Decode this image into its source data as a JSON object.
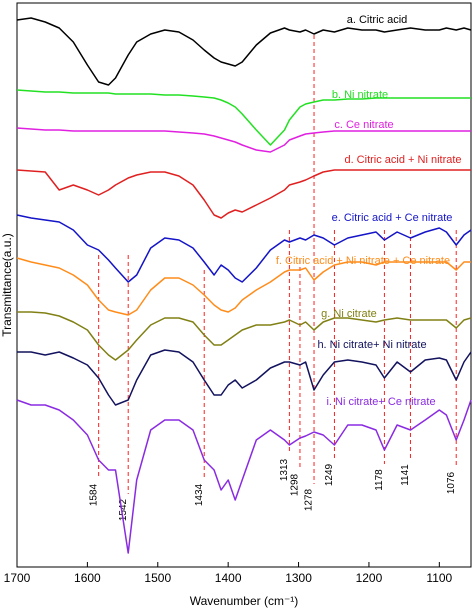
{
  "chart_data": {
    "type": "line",
    "xlabel": "Wavenumber (cm⁻¹)",
    "ylabel": "Transmittance(a.u.)",
    "xlim": [
      1700,
      1055
    ],
    "ylim": [
      0,
      564
    ],
    "xticks": [
      1700,
      1600,
      1500,
      1400,
      1300,
      1200,
      1100
    ],
    "peaks": [
      1584,
      1542,
      1434,
      1313,
      1298,
      1278,
      1249,
      1178,
      1141,
      1076
    ],
    "x": [
      1700,
      1680,
      1660,
      1640,
      1620,
      1600,
      1584,
      1570,
      1560,
      1542,
      1530,
      1510,
      1490,
      1470,
      1450,
      1434,
      1420,
      1410,
      1400,
      1390,
      1380,
      1360,
      1340,
      1320,
      1313,
      1298,
      1290,
      1278,
      1265,
      1249,
      1230,
      1210,
      1190,
      1178,
      1160,
      1141,
      1120,
      1100,
      1090,
      1076,
      1065,
      1055
    ],
    "series": [
      {
        "name": "a. Citric acid",
        "color": "#000000",
        "values": [
          547,
          549,
          545,
          539,
          525,
          502,
          485,
          482,
          489,
          512,
          525,
          533,
          537,
          535,
          527,
          517,
          509,
          505,
          503,
          501,
          505,
          522,
          534,
          539,
          537,
          535,
          537,
          533,
          537,
          535,
          539,
          537,
          537,
          535,
          537,
          539,
          537,
          537,
          539,
          537,
          539,
          537
        ]
      },
      {
        "name": "b. Ni nitrate",
        "color": "#22e022",
        "values": [
          477,
          476,
          475,
          475,
          474,
          474,
          474,
          474,
          473,
          473,
          473,
          473,
          472,
          472,
          471,
          470,
          469,
          467,
          464,
          460,
          453,
          437,
          422,
          437,
          447,
          460,
          463,
          465,
          467,
          467,
          468,
          468,
          469,
          469,
          469,
          469,
          469,
          469,
          469,
          469,
          469,
          469
        ]
      },
      {
        "name": "c. Ce nitrate",
        "color": "#e020e0",
        "values": [
          439,
          438,
          437,
          437,
          436,
          436,
          436,
          436,
          436,
          436,
          436,
          436,
          436,
          435,
          434,
          433,
          431,
          429,
          427,
          425,
          422,
          417,
          415,
          422,
          427,
          431,
          433,
          434,
          435,
          436,
          436,
          436,
          436,
          436,
          436,
          436,
          436,
          436,
          436,
          436,
          436,
          436
        ]
      },
      {
        "name": "d. Citric acid + Ni nitrate",
        "color": "#e02020",
        "values": [
          397,
          396,
          395,
          377,
          382,
          377,
          372,
          377,
          382,
          389,
          392,
          395,
          395,
          391,
          382,
          367,
          352,
          349,
          354,
          357,
          355,
          362,
          369,
          377,
          382,
          385,
          387,
          391,
          395,
          397,
          397,
          397,
          397,
          397,
          397,
          397,
          397,
          397,
          397,
          397,
          397,
          397
        ]
      },
      {
        "name": "e. Citric acid + Ce nitrate",
        "color": "#1414c8",
        "values": [
          352,
          349,
          347,
          345,
          337,
          322,
          317,
          307,
          299,
          285,
          292,
          319,
          329,
          327,
          319,
          305,
          292,
          302,
          297,
          289,
          285,
          299,
          317,
          327,
          325,
          329,
          327,
          332,
          329,
          322,
          329,
          332,
          335,
          327,
          335,
          329,
          335,
          339,
          335,
          322,
          332,
          337
        ]
      },
      {
        "name": "f. Citric acid + Ni nitrate + Ce nitrate",
        "color": "#ff8c1a",
        "values": [
          309,
          305,
          302,
          299,
          292,
          282,
          267,
          257,
          255,
          252,
          257,
          277,
          289,
          289,
          282,
          272,
          262,
          257,
          255,
          259,
          267,
          277,
          285,
          295,
          297,
          297,
          299,
          287,
          295,
          302,
          305,
          305,
          302,
          305,
          305,
          305,
          305,
          305,
          305,
          297,
          305,
          305
        ]
      },
      {
        "name": "g. Ni citrate",
        "color": "#808014",
        "values": [
          255,
          255,
          254,
          251,
          245,
          237,
          222,
          212,
          207,
          217,
          227,
          242,
          249,
          249,
          245,
          232,
          222,
          222,
          227,
          232,
          237,
          242,
          242,
          245,
          247,
          242,
          245,
          237,
          245,
          249,
          249,
          247,
          245,
          247,
          249,
          247,
          247,
          247,
          247,
          239,
          247,
          249
        ]
      },
      {
        "name": "h. Ni citrate+ Ni nitrate",
        "color": "#12125e",
        "values": [
          215,
          215,
          212,
          215,
          209,
          202,
          189,
          172,
          162,
          167,
          187,
          212,
          217,
          215,
          205,
          187,
          172,
          172,
          182,
          187,
          179,
          187,
          199,
          205,
          205,
          202,
          205,
          177,
          192,
          205,
          207,
          205,
          202,
          189,
          205,
          195,
          207,
          209,
          207,
          187,
          205,
          215
        ]
      },
      {
        "name": "i. Ni citrate+ Ce nitrate",
        "color": "#8a2be2",
        "values": [
          167,
          162,
          162,
          157,
          147,
          132,
          107,
          97,
          97,
          14,
          87,
          137,
          147,
          147,
          137,
          107,
          97,
          77,
          87,
          67,
          87,
          127,
          137,
          127,
          122,
          129,
          131,
          135,
          132,
          122,
          142,
          142,
          137,
          117,
          142,
          137,
          147,
          157,
          152,
          127,
          147,
          167
        ]
      }
    ]
  }
}
